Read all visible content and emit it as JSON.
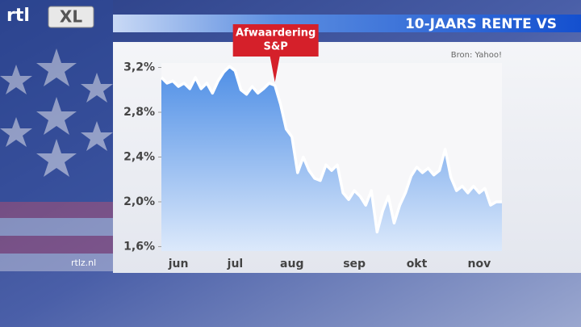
{
  "logo": {
    "brand": "rtl",
    "channel": "XL"
  },
  "footer": "rtlz.nl",
  "chart_data": {
    "type": "line",
    "title": "10-JAARS RENTE VS",
    "source": "Bron: Yahoo!",
    "annotation": {
      "lines": [
        "Afwaardering",
        "S&P"
      ],
      "index": 20
    },
    "categories": [
      null,
      null,
      null,
      "jun",
      null,
      null,
      null,
      null,
      null,
      null,
      null,
      null,
      null,
      "jul",
      null,
      null,
      null,
      null,
      null,
      null,
      null,
      null,
      null,
      "aug",
      null,
      null,
      null,
      null,
      null,
      null,
      null,
      null,
      null,
      null,
      "sep",
      null,
      null,
      null,
      null,
      null,
      null,
      null,
      null,
      null,
      null,
      "okt",
      null,
      null,
      null,
      null,
      null,
      null,
      null,
      null,
      null,
      null,
      "nov",
      null,
      null,
      null,
      null
    ],
    "series": [
      {
        "name": "10-jaars rente",
        "color": "#ffffff",
        "values": [
          3.11,
          3.06,
          3.08,
          3.03,
          3.06,
          3.01,
          3.11,
          3.01,
          3.06,
          2.97,
          3.08,
          3.16,
          3.21,
          3.17,
          3.0,
          2.96,
          3.03,
          2.97,
          3.01,
          3.06,
          3.04,
          2.87,
          2.65,
          2.58,
          2.26,
          2.4,
          2.28,
          2.21,
          2.19,
          2.33,
          2.28,
          2.33,
          2.08,
          2.02,
          2.1,
          2.05,
          1.97,
          2.1,
          1.73,
          1.92,
          2.05,
          1.81,
          1.97,
          2.08,
          2.23,
          2.31,
          2.26,
          2.3,
          2.24,
          2.28,
          2.47,
          2.22,
          2.1,
          2.14,
          2.08,
          2.14,
          2.08,
          2.12,
          1.97,
          2.0,
          2.0
        ]
      }
    ],
    "ylim": [
      1.56,
      3.24
    ],
    "yticks": [
      {
        "value": 1.6,
        "label": "1,6%"
      },
      {
        "value": 2.0,
        "label": "2,0%"
      },
      {
        "value": 2.4,
        "label": "2,4%"
      },
      {
        "value": 2.8,
        "label": "2,8%"
      },
      {
        "value": 3.2,
        "label": "3,2%"
      }
    ],
    "area_color": "#4f8fe6"
  }
}
